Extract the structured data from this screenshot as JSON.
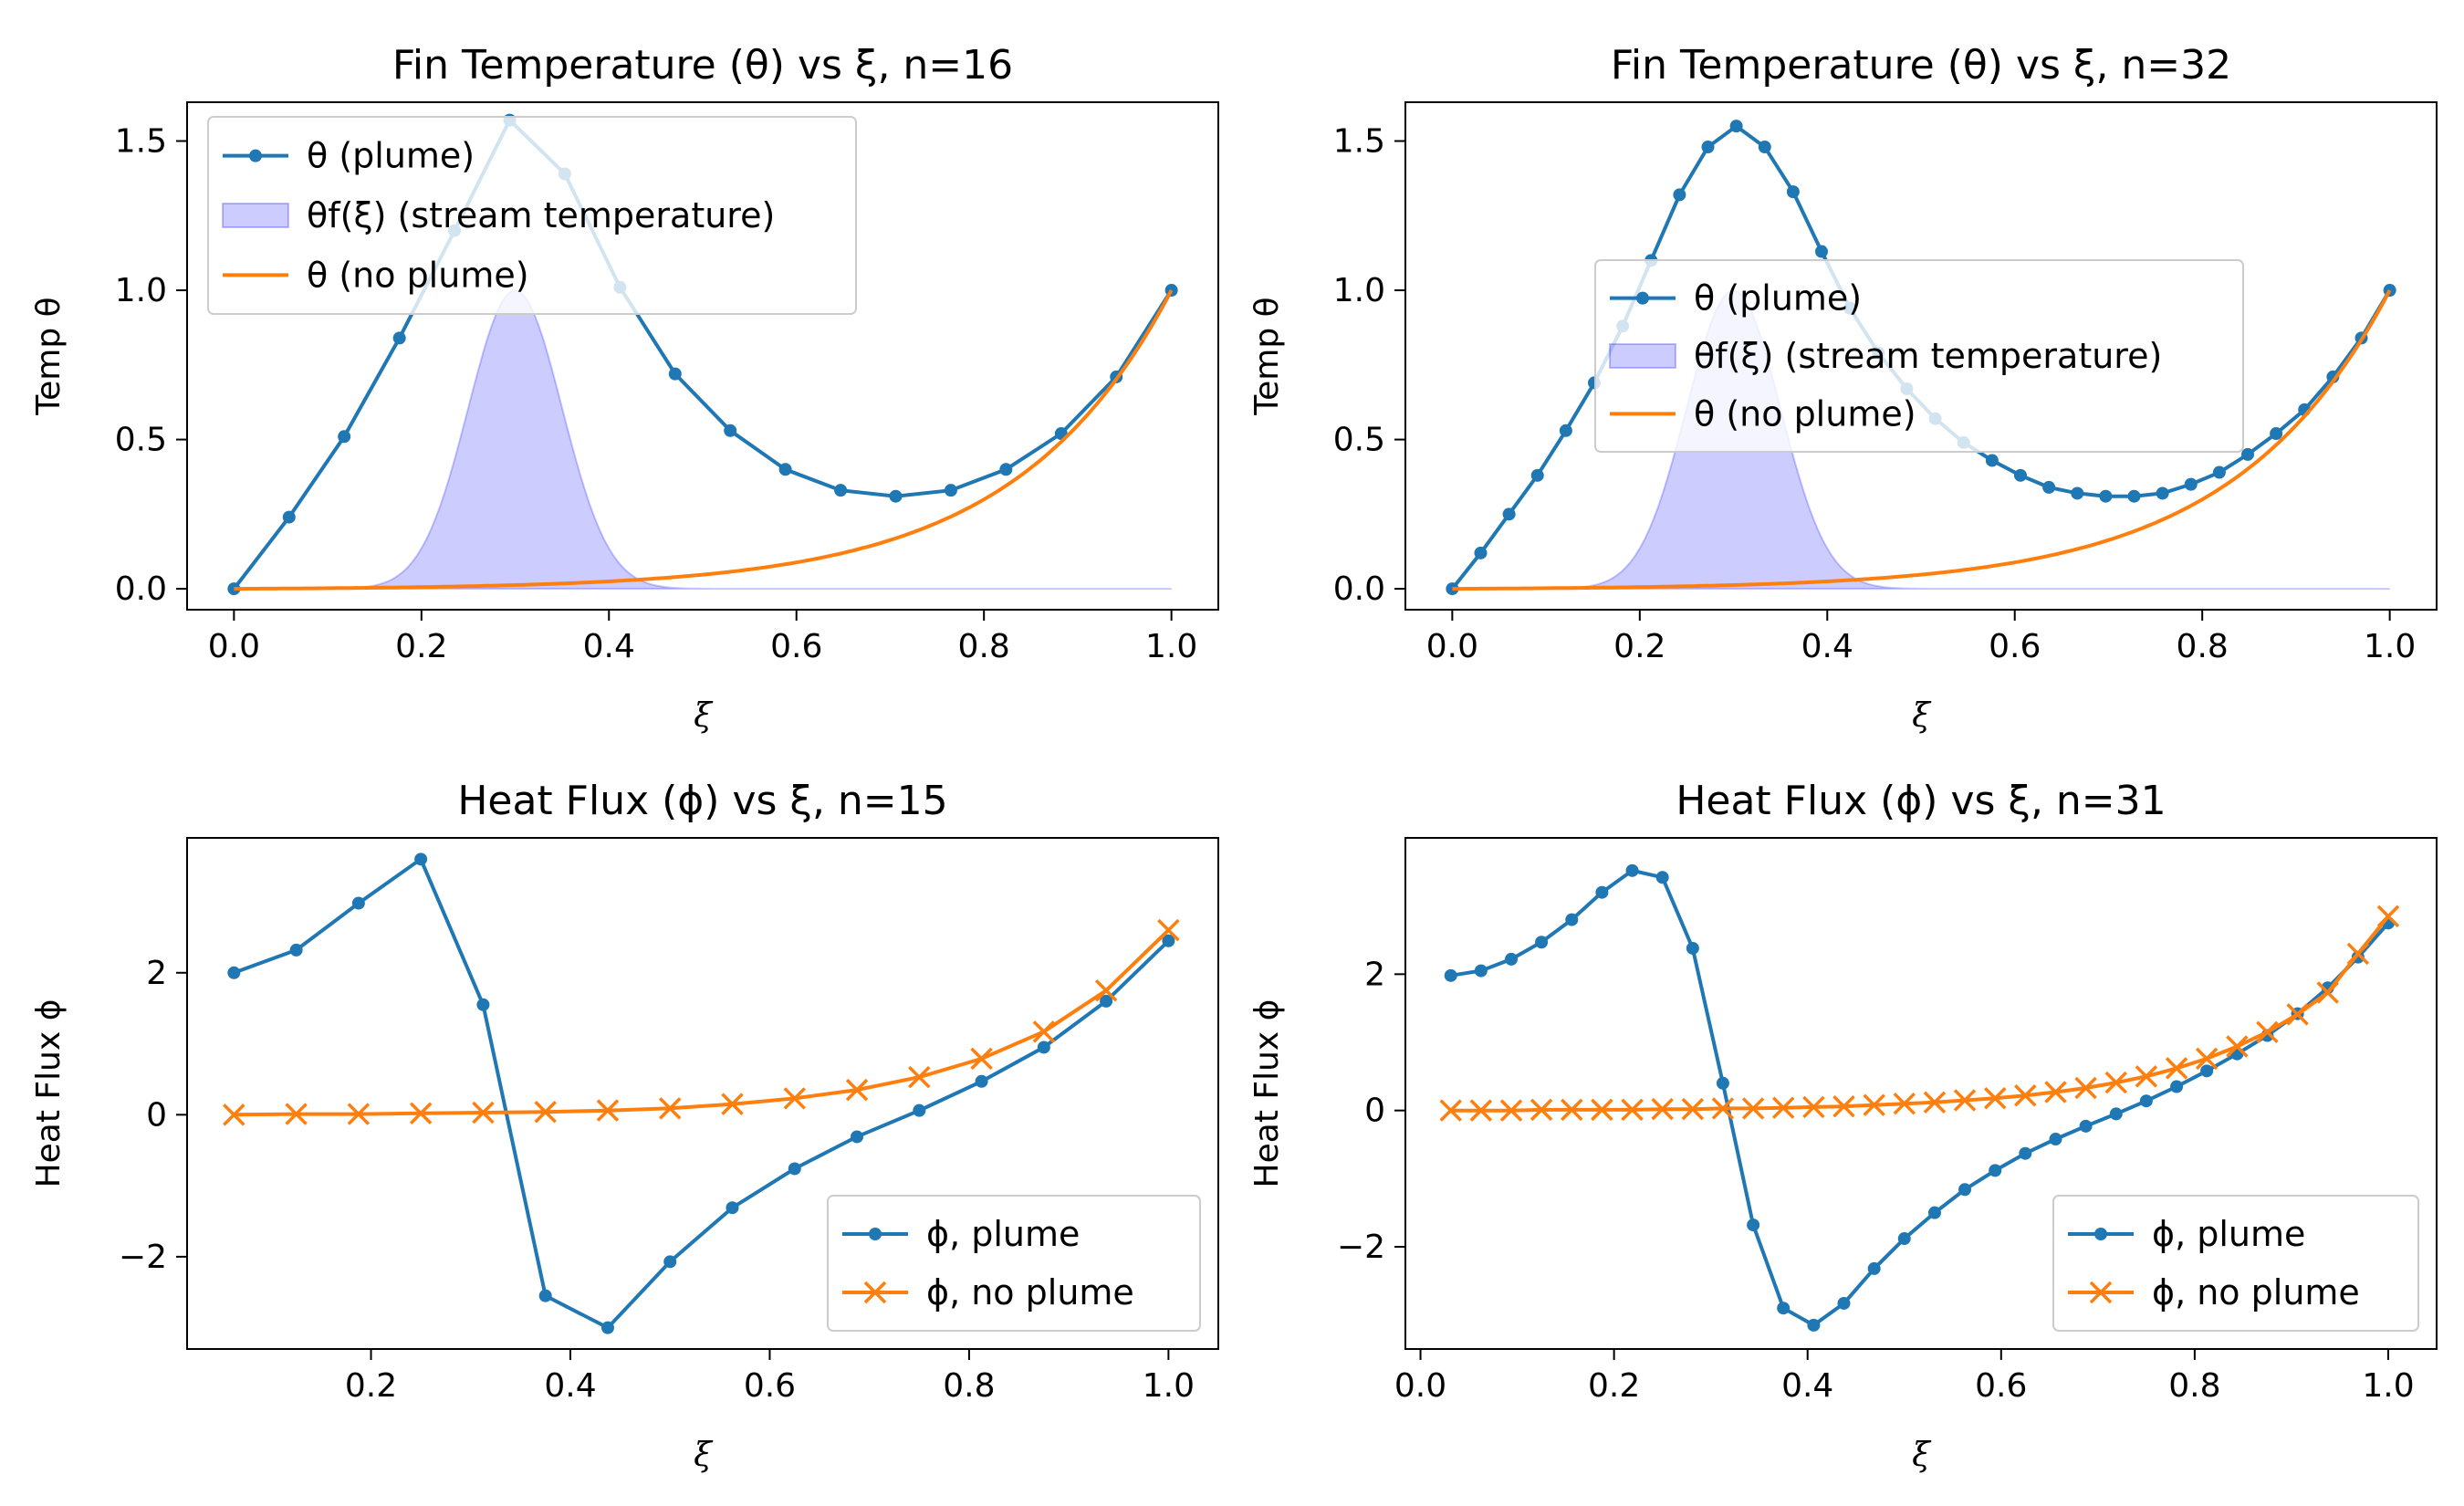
{
  "chart_data": [
    {
      "type": "line",
      "title": "Fin Temperature (θ) vs ξ, n=16",
      "xlabel": "ξ",
      "ylabel": "Temp θ",
      "xlim": [
        -0.05,
        1.05
      ],
      "ylim": [
        -0.07,
        1.63
      ],
      "xticks": [
        "0.0",
        "0.2",
        "0.4",
        "0.6",
        "0.8",
        "1.0"
      ],
      "yticks": [
        "0.0",
        "0.5",
        "1.0",
        "1.5"
      ],
      "legend_position": "upper-left",
      "series": [
        {
          "name": "θ (plume)",
          "color": "#1f77b4",
          "marker": "dot",
          "x": [
            0.0,
            0.0588,
            0.1176,
            0.1765,
            0.2353,
            0.2941,
            0.3529,
            0.4118,
            0.4706,
            0.5294,
            0.5882,
            0.6471,
            0.7059,
            0.7647,
            0.8235,
            0.8824,
            0.9412,
            1.0
          ],
          "y": [
            0.0,
            0.24,
            0.51,
            0.84,
            1.2,
            1.57,
            1.39,
            1.01,
            0.72,
            0.53,
            0.4,
            0.33,
            0.31,
            0.33,
            0.4,
            0.52,
            0.71,
            1.0
          ]
        },
        {
          "name": "θf(ξ) (stream temperature)",
          "color": "#0000ff",
          "kind": "filled-gaussian",
          "center": 0.3,
          "width": 0.05,
          "peak": 1.0,
          "x_range": [
            0.0,
            1.0
          ]
        },
        {
          "name": "θ (no plume)",
          "color": "#ff7f0e",
          "kind": "exponential-curve",
          "x": [
            0.0,
            0.1,
            0.2,
            0.3,
            0.4,
            0.5,
            0.6,
            0.7,
            0.8,
            0.9,
            1.0
          ],
          "y": [
            0.0,
            0.003,
            0.007,
            0.012,
            0.02,
            0.034,
            0.058,
            0.1,
            0.2,
            0.42,
            1.0
          ]
        }
      ]
    },
    {
      "type": "line",
      "title": "Fin Temperature (θ) vs ξ, n=32",
      "xlabel": "ξ",
      "ylabel": "Temp θ",
      "xlim": [
        -0.05,
        1.05
      ],
      "ylim": [
        -0.07,
        1.63
      ],
      "xticks": [
        "0.0",
        "0.2",
        "0.4",
        "0.6",
        "0.8",
        "1.0"
      ],
      "yticks": [
        "0.0",
        "0.5",
        "1.0",
        "1.5"
      ],
      "legend_position": "center",
      "series": [
        {
          "name": "θ (plume)",
          "color": "#1f77b4",
          "marker": "dot",
          "x": [
            0.0,
            0.0303,
            0.0606,
            0.0909,
            0.1212,
            0.1515,
            0.1818,
            0.2121,
            0.2424,
            0.2727,
            0.303,
            0.3333,
            0.3636,
            0.3939,
            0.4242,
            0.4545,
            0.4848,
            0.5152,
            0.5455,
            0.5758,
            0.6061,
            0.6364,
            0.6667,
            0.697,
            0.7273,
            0.7576,
            0.7879,
            0.8182,
            0.8485,
            0.8788,
            0.9091,
            0.9394,
            0.9697,
            1.0
          ],
          "y": [
            0.0,
            0.12,
            0.25,
            0.38,
            0.53,
            0.69,
            0.88,
            1.1,
            1.32,
            1.48,
            1.55,
            1.48,
            1.33,
            1.13,
            0.94,
            0.79,
            0.67,
            0.57,
            0.49,
            0.43,
            0.38,
            0.34,
            0.32,
            0.31,
            0.31,
            0.32,
            0.35,
            0.39,
            0.45,
            0.52,
            0.6,
            0.71,
            0.84,
            1.0
          ]
        },
        {
          "name": "θf(ξ) (stream temperature)",
          "color": "#0000ff",
          "kind": "filled-gaussian",
          "center": 0.3,
          "width": 0.05,
          "peak": 1.0,
          "x_range": [
            0.0,
            1.0
          ]
        },
        {
          "name": "θ (no plume)",
          "color": "#ff7f0e",
          "kind": "exponential-curve",
          "x": [
            0.0,
            0.1,
            0.2,
            0.3,
            0.4,
            0.5,
            0.6,
            0.7,
            0.8,
            0.9,
            1.0
          ],
          "y": [
            0.0,
            0.003,
            0.007,
            0.012,
            0.02,
            0.034,
            0.058,
            0.1,
            0.2,
            0.42,
            1.0
          ]
        }
      ]
    },
    {
      "type": "line",
      "title": "Heat Flux (ϕ) vs ξ, n=15",
      "xlabel": "ξ",
      "ylabel": "Heat Flux ϕ",
      "xlim": [
        0.0155,
        1.05
      ],
      "ylim": [
        -3.3,
        3.9
      ],
      "xticks": [
        "0.2",
        "0.4",
        "0.6",
        "0.8",
        "1.0"
      ],
      "yticks": [
        "−2",
        "0",
        "2"
      ],
      "legend_position": "lower-right",
      "series": [
        {
          "name": "ϕ, plume",
          "color": "#1f77b4",
          "marker": "dot",
          "x": [
            0.0625,
            0.125,
            0.1875,
            0.25,
            0.3125,
            0.375,
            0.4375,
            0.5,
            0.5625,
            0.625,
            0.6875,
            0.75,
            0.8125,
            0.875,
            0.9375,
            1.0
          ],
          "y": [
            2.0,
            2.32,
            2.98,
            3.6,
            1.55,
            -2.55,
            -3.0,
            -2.07,
            -1.31,
            -0.76,
            -0.31,
            0.06,
            0.47,
            0.95,
            1.6,
            2.45
          ]
        },
        {
          "name": "ϕ, no plume",
          "color": "#ff7f0e",
          "marker": "x",
          "x": [
            0.0625,
            0.125,
            0.1875,
            0.25,
            0.3125,
            0.375,
            0.4375,
            0.5,
            0.5625,
            0.625,
            0.6875,
            0.75,
            0.8125,
            0.875,
            0.9375,
            1.0
          ],
          "y": [
            0.0,
            0.01,
            0.01,
            0.02,
            0.03,
            0.04,
            0.06,
            0.09,
            0.15,
            0.23,
            0.35,
            0.53,
            0.79,
            1.17,
            1.75,
            2.6
          ]
        }
      ]
    },
    {
      "type": "line",
      "title": "Heat Flux (ϕ) vs ξ, n=31",
      "xlabel": "ξ",
      "ylabel": "Heat Flux ϕ",
      "xlim": [
        -0.0156,
        1.05
      ],
      "ylim": [
        -3.5,
        4.0
      ],
      "xticks": [
        "0.0",
        "0.2",
        "0.4",
        "0.6",
        "0.8",
        "1.0"
      ],
      "yticks": [
        "−2",
        "0",
        "2"
      ],
      "legend_position": "lower-right",
      "series": [
        {
          "name": "ϕ, plume",
          "color": "#1f77b4",
          "marker": "dot",
          "x": [
            0.0313,
            0.0625,
            0.0938,
            0.125,
            0.1563,
            0.1875,
            0.2188,
            0.25,
            0.2813,
            0.3125,
            0.3438,
            0.375,
            0.4063,
            0.4375,
            0.4688,
            0.5,
            0.5313,
            0.5625,
            0.5938,
            0.625,
            0.6563,
            0.6875,
            0.7188,
            0.75,
            0.7813,
            0.8125,
            0.8438,
            0.875,
            0.9063,
            0.9375,
            0.9688,
            1.0
          ],
          "y": [
            1.98,
            2.05,
            2.22,
            2.47,
            2.8,
            3.2,
            3.52,
            3.42,
            2.38,
            0.4,
            -1.68,
            -2.9,
            -3.15,
            -2.83,
            -2.32,
            -1.88,
            -1.5,
            -1.16,
            -0.88,
            -0.63,
            -0.42,
            -0.23,
            -0.05,
            0.14,
            0.35,
            0.58,
            0.83,
            1.1,
            1.42,
            1.8,
            2.25,
            2.75
          ]
        },
        {
          "name": "ϕ, no plume",
          "color": "#ff7f0e",
          "marker": "x",
          "x": [
            0.0313,
            0.0625,
            0.0938,
            0.125,
            0.1563,
            0.1875,
            0.2188,
            0.25,
            0.2813,
            0.3125,
            0.3438,
            0.375,
            0.4063,
            0.4375,
            0.4688,
            0.5,
            0.5313,
            0.5625,
            0.5938,
            0.625,
            0.6563,
            0.6875,
            0.7188,
            0.75,
            0.7813,
            0.8125,
            0.8438,
            0.875,
            0.9063,
            0.9375,
            0.9688,
            1.0
          ],
          "y": [
            0.0,
            0.0,
            0.0,
            0.01,
            0.01,
            0.01,
            0.01,
            0.02,
            0.02,
            0.03,
            0.03,
            0.04,
            0.05,
            0.06,
            0.08,
            0.1,
            0.12,
            0.15,
            0.18,
            0.22,
            0.27,
            0.33,
            0.41,
            0.5,
            0.62,
            0.76,
            0.94,
            1.15,
            1.41,
            1.73,
            2.3,
            2.85
          ]
        }
      ]
    }
  ]
}
